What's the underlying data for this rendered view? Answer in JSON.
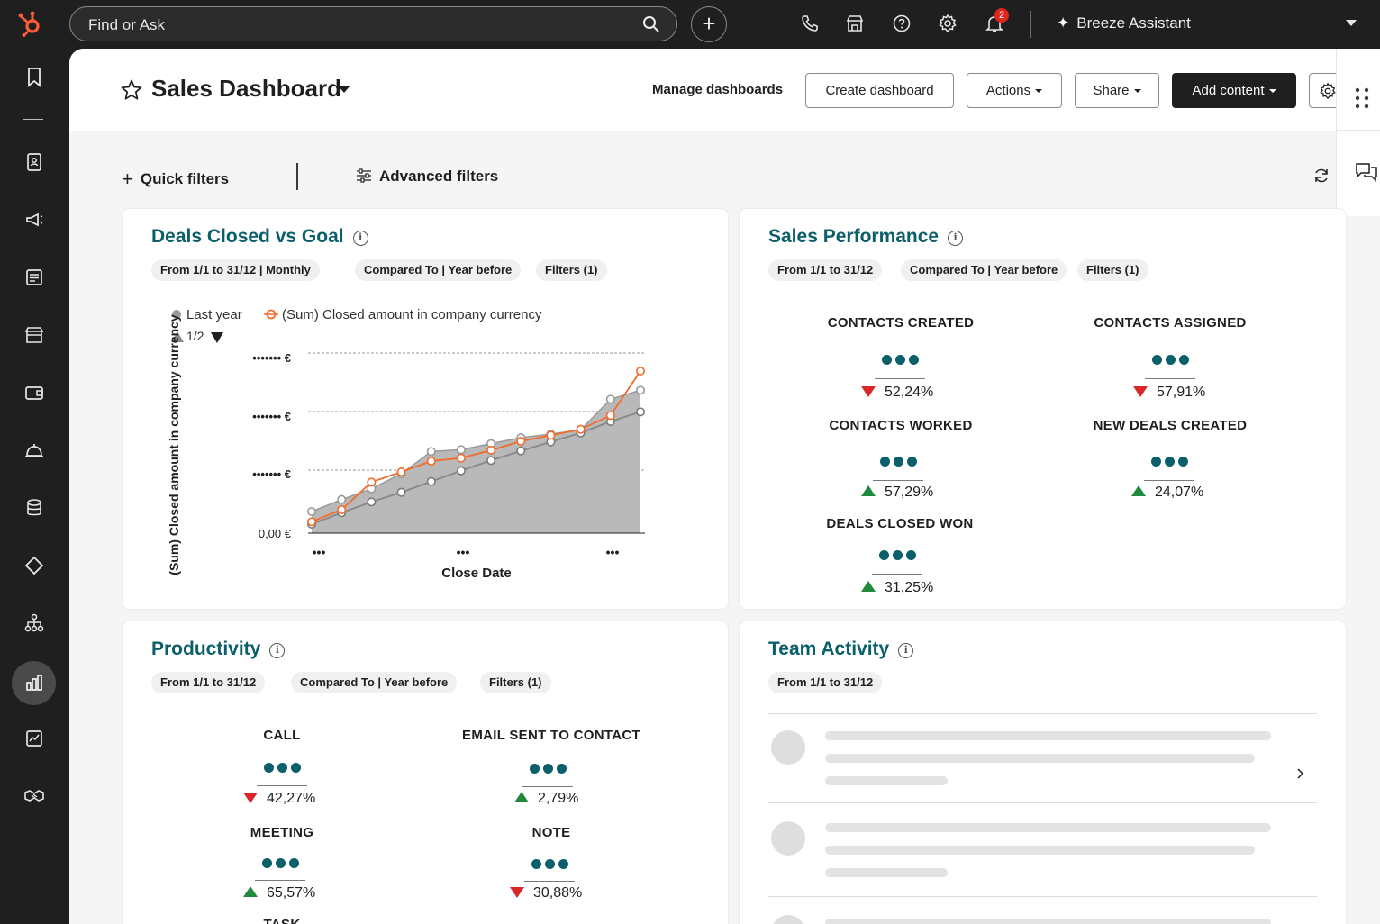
{
  "topbar": {
    "search_placeholder": "Find or Ask",
    "notification_count": "2",
    "assistant_label": "Breeze Assistant"
  },
  "header": {
    "title": "Sales Dashboard",
    "manage_link": "Manage dashboards",
    "create_button": "Create dashboard",
    "actions_button": "Actions",
    "share_button": "Share",
    "add_content_button": "Add content"
  },
  "filters": {
    "quick": "Quick filters",
    "advanced": "Advanced filters"
  },
  "deals_card": {
    "title": "Deals Closed vs Goal",
    "chips": [
      "From 1/1 to 31/12 | Monthly",
      "Compared To | Year before",
      "Filters (1)"
    ],
    "legend_last_year": "Last year",
    "legend_current": "(Sum) Closed amount in company currency",
    "legend_page": "1/2",
    "ylabel": "(Sum) Closed amount in company currency",
    "xlabel": "Close Date",
    "ytick_top": "••••••• €",
    "ytick_mid": "••••••• €",
    "ytick_low": "••••••• €",
    "ytick_zero": "0,00 €",
    "xtick_1": "•••",
    "xtick_2": "•••",
    "xtick_3": "•••"
  },
  "chart_data": {
    "type": "line",
    "title": "Deals Closed vs Goal",
    "xlabel": "Close Date",
    "ylabel": "(Sum) Closed amount in company currency",
    "x": [
      1,
      2,
      3,
      4,
      5,
      6,
      7,
      8,
      9,
      10,
      11,
      12
    ],
    "ylim": [
      0,
      3
    ],
    "grid": true,
    "legend": "top-left",
    "series": [
      {
        "name": "Last year",
        "color": "#9a9a9a",
        "upper": [
          0.36,
          0.56,
          0.74,
          0.99,
          1.36,
          1.39,
          1.49,
          1.59,
          1.65,
          1.72,
          2.23,
          2.38
        ],
        "lower": [
          0.15,
          0.34,
          0.52,
          0.68,
          0.86,
          1.04,
          1.21,
          1.37,
          1.52,
          1.67,
          1.86,
          2.02
        ]
      },
      {
        "name": "(Sum) Closed amount in company currency",
        "color": "#f26b2b",
        "values": [
          0.19,
          0.39,
          0.85,
          1.02,
          1.2,
          1.25,
          1.38,
          1.53,
          1.63,
          1.73,
          1.96,
          2.7
        ]
      }
    ]
  },
  "sales_card": {
    "title": "Sales Performance",
    "chips": [
      "From 1/1 to 31/12",
      "Compared To | Year before",
      "Filters (1)"
    ],
    "kpis": [
      {
        "label": "CONTACTS CREATED",
        "delta": "52,24%",
        "trend": "down"
      },
      {
        "label": "CONTACTS ASSIGNED",
        "delta": "57,91%",
        "trend": "down"
      },
      {
        "label": "CONTACTS WORKED",
        "delta": "57,29%",
        "trend": "up"
      },
      {
        "label": "NEW DEALS CREATED",
        "delta": "24,07%",
        "trend": "up"
      },
      {
        "label": "DEALS CLOSED WON",
        "delta": "31,25%",
        "trend": "up"
      }
    ]
  },
  "productivity_card": {
    "title": "Productivity",
    "chips": [
      "From 1/1 to 31/12",
      "Compared To | Year before",
      "Filters (1)"
    ],
    "kpis": [
      {
        "label": "CALL",
        "delta": "42,27%",
        "trend": "down"
      },
      {
        "label": "EMAIL SENT TO CONTACT",
        "delta": "2,79%",
        "trend": "up"
      },
      {
        "label": "MEETING",
        "delta": "65,57%",
        "trend": "up"
      },
      {
        "label": "NOTE",
        "delta": "30,88%",
        "trend": "down"
      },
      {
        "label": "TASK"
      }
    ]
  },
  "team_card": {
    "title": "Team Activity",
    "chips": [
      "From 1/1 to 31/12"
    ]
  },
  "colors": {
    "brand_orange": "#ff5c35",
    "title_teal": "#0b5f6a",
    "down_red": "#d9262a",
    "up_green": "#1f8a3c"
  }
}
